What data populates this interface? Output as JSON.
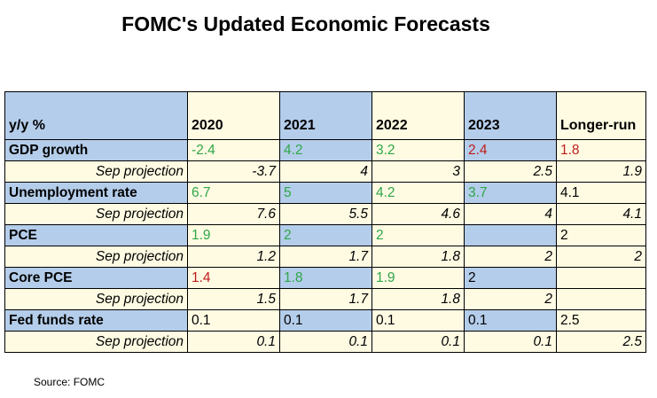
{
  "title": "FOMC's Updated Economic Forecasts",
  "source": "Source: FOMC",
  "colors": {
    "header_blue": "#b4cdea",
    "cream": "#fffbe3",
    "up_green": "#2fa648",
    "down_red": "#bf1d1d"
  },
  "chart_data": {
    "type": "table",
    "title": "FOMC's Updated Economic Forecasts",
    "columns": [
      "y/y  %",
      "2020",
      "2021",
      "2022",
      "2023",
      "Longer-run"
    ],
    "rows": [
      {
        "label": "GDP growth",
        "values": [
          "-2.4",
          "4.2",
          "3.2",
          "2.4",
          "1.8"
        ],
        "colors": [
          "green",
          "green",
          "green",
          "red",
          "red"
        ]
      },
      {
        "label": "Sep projection",
        "values": [
          "-3.7",
          "4",
          "3",
          "2.5",
          "1.9"
        ]
      },
      {
        "label": "Unemployment rate",
        "values": [
          "6.7",
          "5",
          "4.2",
          "3.7",
          "4.1"
        ],
        "colors": [
          "green",
          "green",
          "green",
          "green",
          "black"
        ]
      },
      {
        "label": "Sep projection",
        "values": [
          "7.6",
          "5.5",
          "4.6",
          "4",
          "4.1"
        ]
      },
      {
        "label": "PCE",
        "values": [
          "1.9",
          "2",
          "2",
          "",
          "2"
        ],
        "colors": [
          "green",
          "green",
          "green",
          "black",
          "black"
        ]
      },
      {
        "label": "Sep projection",
        "values": [
          "1.2",
          "1.7",
          "1.8",
          "2",
          "2"
        ]
      },
      {
        "label": "Core PCE",
        "values": [
          "1.4",
          "1.8",
          "1.9",
          "2",
          ""
        ],
        "colors": [
          "red",
          "green",
          "green",
          "black",
          "black"
        ]
      },
      {
        "label": "Sep projection",
        "values": [
          "1.5",
          "1.7",
          "1.8",
          "2",
          ""
        ]
      },
      {
        "label": "Fed funds rate",
        "values": [
          "0.1",
          "0.1",
          "0.1",
          "0.1",
          "2.5"
        ],
        "colors": [
          "black",
          "black",
          "black",
          "black",
          "black"
        ]
      },
      {
        "label": "Sep projection",
        "values": [
          "0.1",
          "0.1",
          "0.1",
          "0.1",
          "2.5"
        ]
      }
    ]
  }
}
